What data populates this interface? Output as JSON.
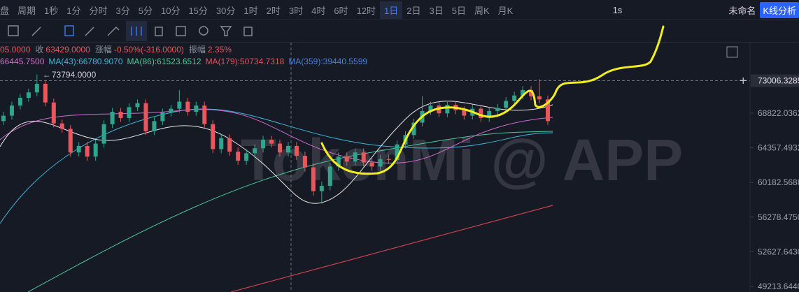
{
  "toolbar": {
    "market": "盘",
    "period": "周期",
    "intervals": [
      "1秒",
      "1分",
      "分时",
      "3分",
      "5分",
      "10分",
      "15分",
      "30分",
      "1时",
      "2时",
      "3时",
      "4时",
      "6时",
      "12时",
      "1日",
      "2日",
      "3日",
      "5日",
      "周K",
      "月K"
    ],
    "active_index": 14,
    "realtime": "1s",
    "layout_name": "未命名",
    "analysis_button": "K线分析"
  },
  "info": {
    "open_tail": "05.0000",
    "close_label": "收",
    "close": "63429.0000",
    "change_label": "涨幅",
    "change": "-0.50%(-316.0000)",
    "amplitude_label": "振幅",
    "amplitude": "2.35%"
  },
  "ma": [
    {
      "text": "66445.7500",
      "color": "#d56ad0"
    },
    {
      "text": "MA(43):66780.9070",
      "color": "#3fb6d8"
    },
    {
      "text": "MA(86):61523.6512",
      "color": "#4cc79a"
    },
    {
      "text": "MA(179):50734.7318",
      "color": "#e0525a"
    },
    {
      "text": "MA(359):39440.5599",
      "color": "#4a7fd8"
    }
  ],
  "chart": {
    "watermark": "TokenMi @ APP",
    "up_color": "#2ea58c",
    "down_color": "#e8575c",
    "price_ticks": [
      68822.0362,
      64357.4932,
      60182.5688,
      {
        "value": 56278.475,
        "label": "56278.4750"
      },
      {
        "value": 52627.643,
        "label": "52627.6430"
      },
      {
        "value": 49213.644,
        "label": "49213.6440"
      }
    ],
    "crosshair_price": 73006.3285,
    "peak": {
      "value": 73794,
      "label": "73794.0000",
      "index": 4
    },
    "candles": [
      [
        67800,
        69000,
        67300,
        68500
      ],
      [
        68500,
        70300,
        68000,
        69800
      ],
      [
        69800,
        71300,
        69300,
        70800
      ],
      [
        70800,
        72000,
        70300,
        71500
      ],
      [
        71500,
        73794,
        71000,
        72600
      ],
      [
        72600,
        73100,
        69700,
        70200
      ],
      [
        70200,
        70700,
        67000,
        67500
      ],
      [
        67500,
        68000,
        66300,
        66800
      ],
      [
        66800,
        67300,
        63300,
        63800
      ],
      [
        63800,
        65100,
        63300,
        64600
      ],
      [
        64600,
        65100,
        62800,
        63300
      ],
      [
        63300,
        65400,
        62800,
        64900
      ],
      [
        64900,
        67900,
        64400,
        67400
      ],
      [
        67400,
        69500,
        66900,
        69000
      ],
      [
        69000,
        69500,
        67700,
        68200
      ],
      [
        68200,
        70100,
        67700,
        69600
      ],
      [
        69600,
        70600,
        69100,
        70100
      ],
      [
        70100,
        70600,
        66000,
        66500
      ],
      [
        66500,
        68300,
        66000,
        67800
      ],
      [
        67800,
        69400,
        67300,
        68900
      ],
      [
        68900,
        69900,
        68400,
        69400
      ],
      [
        69400,
        71800,
        68900,
        70300
      ],
      [
        70300,
        70800,
        68500,
        69000
      ],
      [
        69000,
        70300,
        68500,
        69800
      ],
      [
        69800,
        70300,
        66900,
        67400
      ],
      [
        67400,
        67900,
        63700,
        64200
      ],
      [
        64200,
        66100,
        63700,
        65600
      ],
      [
        65600,
        66100,
        63400,
        63900
      ],
      [
        63900,
        64400,
        62300,
        62800
      ],
      [
        62800,
        64200,
        62300,
        63700
      ],
      [
        63700,
        64800,
        63200,
        64300
      ],
      [
        64300,
        65900,
        63800,
        65400
      ],
      [
        65400,
        65900,
        64400,
        64900
      ],
      [
        64900,
        65400,
        63300,
        63800
      ],
      [
        63800,
        65100,
        63300,
        64600
      ],
      [
        64600,
        65100,
        62900,
        63400
      ],
      [
        63400,
        63900,
        61500,
        62000
      ],
      [
        62000,
        62500,
        58700,
        59200
      ],
      [
        59200,
        60300,
        57800,
        59800
      ],
      [
        59800,
        62600,
        59300,
        62100
      ],
      [
        62100,
        63800,
        61600,
        63300
      ],
      [
        63300,
        63800,
        62200,
        62700
      ],
      [
        62700,
        64300,
        62200,
        63800
      ],
      [
        63800,
        64300,
        62100,
        62600
      ],
      [
        62600,
        63100,
        61600,
        62100
      ],
      [
        62100,
        63500,
        61600,
        63000
      ],
      [
        63000,
        63500,
        62400,
        62900
      ],
      [
        62900,
        65300,
        62400,
        64800
      ],
      [
        64800,
        66500,
        64300,
        66000
      ],
      [
        66000,
        68100,
        65500,
        67600
      ],
      [
        67600,
        71000,
        67100,
        69100
      ],
      [
        69100,
        70300,
        68600,
        69800
      ],
      [
        69800,
        70300,
        68300,
        68800
      ],
      [
        68800,
        70400,
        68300,
        69900
      ],
      [
        69900,
        70400,
        68700,
        69200
      ],
      [
        69200,
        69700,
        68000,
        68500
      ],
      [
        68500,
        69900,
        68000,
        69400
      ],
      [
        69400,
        69900,
        67700,
        68200
      ],
      [
        68200,
        69600,
        67700,
        69100
      ],
      [
        69100,
        70000,
        68600,
        69500
      ],
      [
        69500,
        70900,
        69000,
        70400
      ],
      [
        70400,
        71600,
        69900,
        71100
      ],
      [
        71100,
        72300,
        70600,
        71800
      ],
      [
        71800,
        72300,
        70500,
        71000
      ],
      [
        71000,
        73200,
        70100,
        70600
      ],
      [
        70600,
        71100,
        67300,
        67800
      ]
    ]
  }
}
